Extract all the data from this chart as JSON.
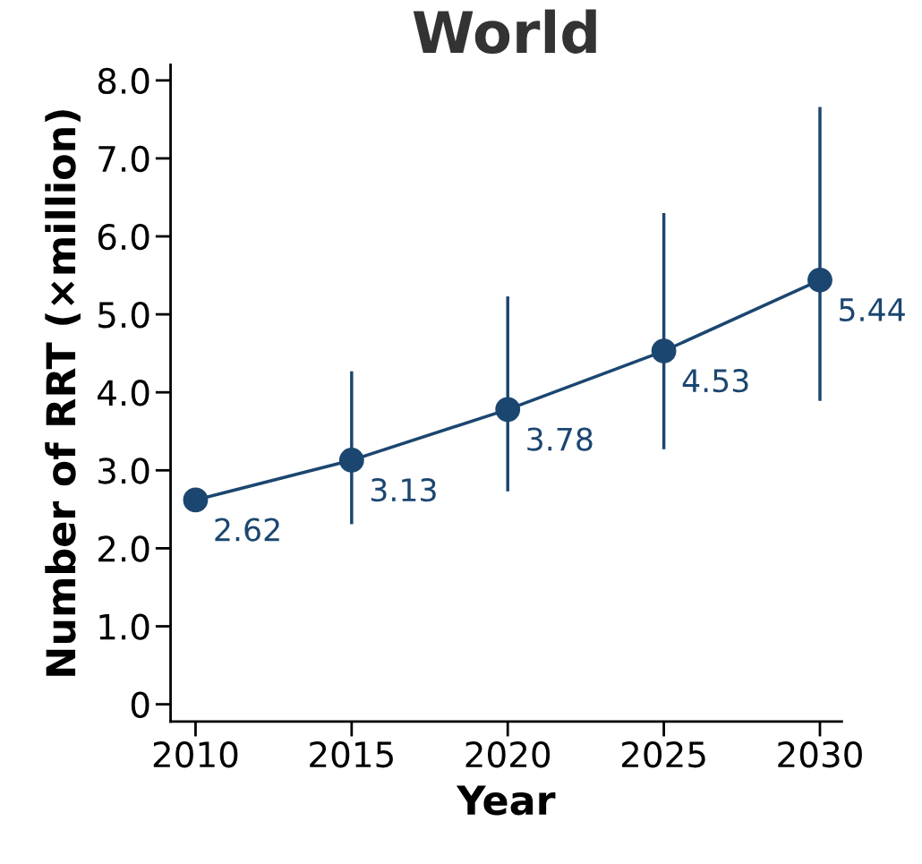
{
  "chart_data": {
    "type": "line",
    "title": "World",
    "xlabel": "Year",
    "ylabel": "Number of RRT (×million)",
    "x": [
      2010,
      2015,
      2020,
      2025,
      2030
    ],
    "series": [
      {
        "color": "#1b4670",
        "values": [
          2.62,
          3.13,
          3.78,
          4.53,
          5.44
        ],
        "errors": [
          null,
          [
            2.33,
            4.25
          ],
          [
            2.75,
            5.21
          ],
          [
            3.29,
            6.28
          ],
          [
            3.91,
            7.64
          ]
        ]
      }
    ],
    "data_labels": true,
    "marker": "circle",
    "line_style": "solid",
    "grid": false,
    "legend": false,
    "xlim": [
      2009.2,
      2030.7
    ],
    "xticks": [
      2010,
      2015,
      2020,
      2025,
      2030
    ],
    "ylim": [
      -0.22,
      8.2
    ],
    "yticks": [
      0,
      {
        "value": 1,
        "label": "1.0"
      },
      {
        "value": 2,
        "label": "2.0"
      },
      {
        "value": 3,
        "label": "3.0"
      },
      {
        "value": 4,
        "label": "4.0"
      },
      {
        "value": 5,
        "label": "5.0"
      },
      {
        "value": 6,
        "label": "6.0"
      },
      {
        "value": 7,
        "label": "7.0"
      },
      {
        "value": 8,
        "label": "8.0"
      }
    ]
  }
}
